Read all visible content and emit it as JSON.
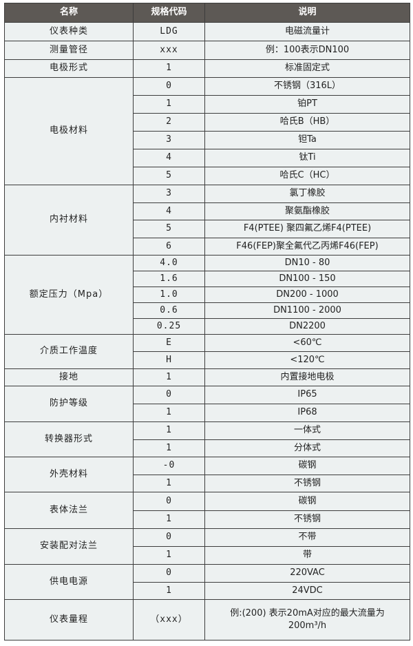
{
  "header": [
    "名称",
    "规格代码",
    "说明"
  ],
  "groups": [
    {
      "name": "仪表种类",
      "h": 27,
      "rows": [
        [
          "LDG",
          "电磁流量计"
        ]
      ]
    },
    {
      "name": "测量管径",
      "h": 27,
      "rows": [
        [
          "xxx",
          "例：100表示DN100"
        ]
      ]
    },
    {
      "name": "电极形式",
      "h": 26,
      "rows": [
        [
          "1",
          "标准固定式"
        ]
      ]
    },
    {
      "name": "电极材料",
      "h": 26,
      "rows": [
        [
          "0",
          "不锈钢（316L）"
        ],
        [
          "1",
          "铂PT"
        ],
        [
          "2",
          "哈氏B（HB）"
        ],
        [
          "3",
          "钽Ta"
        ],
        [
          "4",
          "钛Ti"
        ],
        [
          "5",
          "哈氏C（HC）"
        ]
      ]
    },
    {
      "name": "内衬材料",
      "h": 25.5,
      "rows": [
        [
          "3",
          "氯丁橡胶"
        ],
        [
          "4",
          "聚氨酯橡胶"
        ],
        [
          "5",
          "F4(PTEE) 聚四氟乙烯F4(PTEE)"
        ],
        [
          "6",
          "F46(FEP)聚全氟代乙丙烯F46(FEP)"
        ]
      ]
    },
    {
      "name": "额定压力（Mpa）",
      "h": 23,
      "rows": [
        [
          "4.0",
          "DN10 - 80"
        ],
        [
          "1.6",
          "DN100 - 150"
        ],
        [
          "1.0",
          "DN200 - 1000"
        ],
        [
          "0.6",
          "DN1100 - 2000"
        ],
        [
          "0.25",
          "DN2200"
        ]
      ]
    },
    {
      "name": "介质工作温度",
      "h": 25,
      "rows": [
        [
          "E",
          "<60℃"
        ],
        [
          "H",
          "<120℃"
        ]
      ]
    },
    {
      "name": "接地",
      "h": 25,
      "rows": [
        [
          "1",
          "内置接地电极"
        ]
      ]
    },
    {
      "name": "防护等级",
      "h": 26,
      "rows": [
        [
          "0",
          "IP65"
        ],
        [
          "1",
          "IP68"
        ]
      ]
    },
    {
      "name": "转换器形式",
      "h": 25.5,
      "rows": [
        [
          "1",
          "一体式"
        ],
        [
          "1",
          "分体式"
        ]
      ]
    },
    {
      "name": "外壳材料",
      "h": 25.5,
      "rows": [
        [
          "-0",
          "碳钢"
        ],
        [
          "1",
          "不锈钢"
        ]
      ]
    },
    {
      "name": "表体法兰",
      "h": 26.5,
      "rows": [
        [
          "0",
          "碳钢"
        ],
        [
          "1",
          "不锈钢"
        ]
      ]
    },
    {
      "name": "安装配对法兰",
      "h": 26,
      "rows": [
        [
          "0",
          "不带"
        ],
        [
          "1",
          "带"
        ]
      ]
    },
    {
      "name": "供电电源",
      "h": 25.5,
      "rows": [
        [
          "0",
          "220VAC"
        ],
        [
          "1",
          "24VDC"
        ]
      ]
    },
    {
      "name": "仪表量程",
      "h": 59,
      "rows": [
        [
          "（xxx）",
          "例:(200) 表示20mA对应的最大流量为200m³/h"
        ]
      ]
    }
  ]
}
